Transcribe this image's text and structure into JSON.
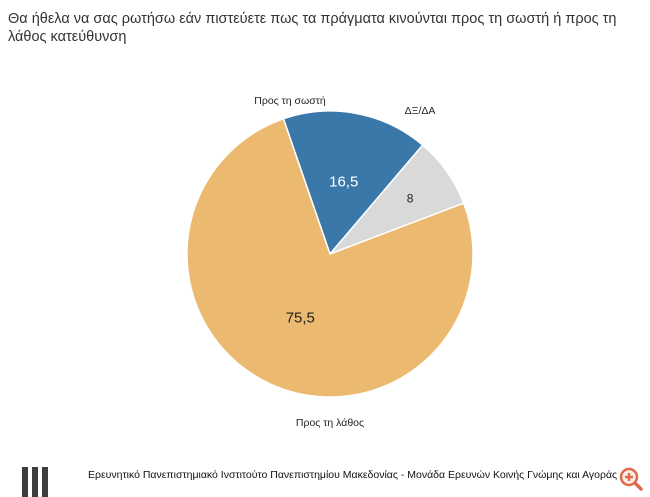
{
  "title": "Θα ήθελα να σας ρωτήσω εάν πιστεύετε πως τα πράγματα κινούνται προς τη σωστή ή προς τη λάθος κατεύθυνση",
  "footer": {
    "source": "Ερευνητικό Πανεπιστημιακό Ινστιτούτο Πανεπιστημίου Μακεδονίας - Μονάδα Ερευνών Κοινής Γνώμης και Αγοράς"
  },
  "icons": {
    "logo": "university-bars-logo",
    "zoom": "zoom-in-icon"
  },
  "colors": {
    "right": "#3b78aa",
    "dk": "#d9d9d9",
    "wrong": "#ebb970"
  },
  "chart_data": {
    "type": "pie",
    "title": "Θα ήθελα να σας ρωτήσω εάν πιστεύετε πως τα πράγματα κινούνται προς τη σωστή ή προς τη λάθος κατεύθυνση",
    "slices": [
      {
        "label": "Προς τη σωστή",
        "value": 16.5,
        "value_label": "16,5",
        "color": "#3b78aa"
      },
      {
        "label": "ΔΞ/ΔΑ",
        "value": 8,
        "value_label": "8",
        "color": "#d9d9d9"
      },
      {
        "label": "Προς τη λάθος",
        "value": 75.5,
        "value_label": "75,5",
        "color": "#ebb970"
      }
    ],
    "legend": "none",
    "labels": "outside category labels, inside value labels"
  }
}
